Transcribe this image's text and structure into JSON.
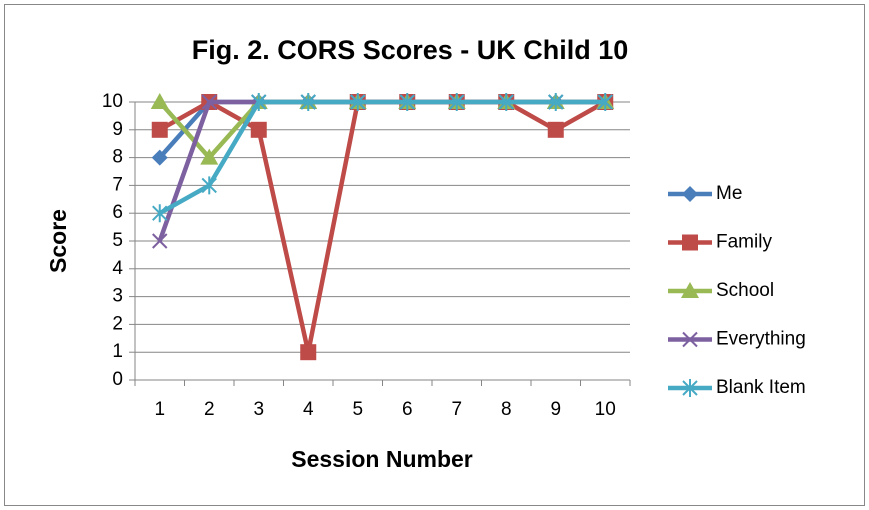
{
  "chart_data": {
    "type": "line",
    "title": "Fig. 2. CORS Scores - UK Child 10",
    "xlabel": "Session Number",
    "ylabel": "Score",
    "categories": [
      1,
      2,
      3,
      4,
      5,
      6,
      7,
      8,
      9,
      10
    ],
    "series": [
      {
        "name": "Me",
        "color": "#4a7ebb",
        "marker": "diamond",
        "values": [
          8,
          10,
          10,
          10,
          10,
          10,
          10,
          10,
          10,
          10
        ]
      },
      {
        "name": "Family",
        "color": "#be4b48",
        "marker": "square",
        "values": [
          9,
          10,
          9,
          1,
          10,
          10,
          10,
          10,
          9,
          10
        ]
      },
      {
        "name": "School",
        "color": "#98b954",
        "marker": "triangle",
        "values": [
          10,
          8,
          10,
          10,
          10,
          10,
          10,
          10,
          10,
          10
        ]
      },
      {
        "name": "Everything",
        "color": "#7d60a0",
        "marker": "x",
        "values": [
          5,
          10,
          10,
          10,
          10,
          10,
          10,
          10,
          10,
          10
        ]
      },
      {
        "name": "Blank Item",
        "color": "#46aac5",
        "marker": "star",
        "values": [
          6,
          7,
          10,
          10,
          10,
          10,
          10,
          10,
          10,
          10
        ]
      }
    ],
    "ylim": [
      0,
      10
    ],
    "yticks": [
      0,
      1,
      2,
      3,
      4,
      5,
      6,
      7,
      8,
      9,
      10
    ],
    "grid": true,
    "legend": "right"
  }
}
